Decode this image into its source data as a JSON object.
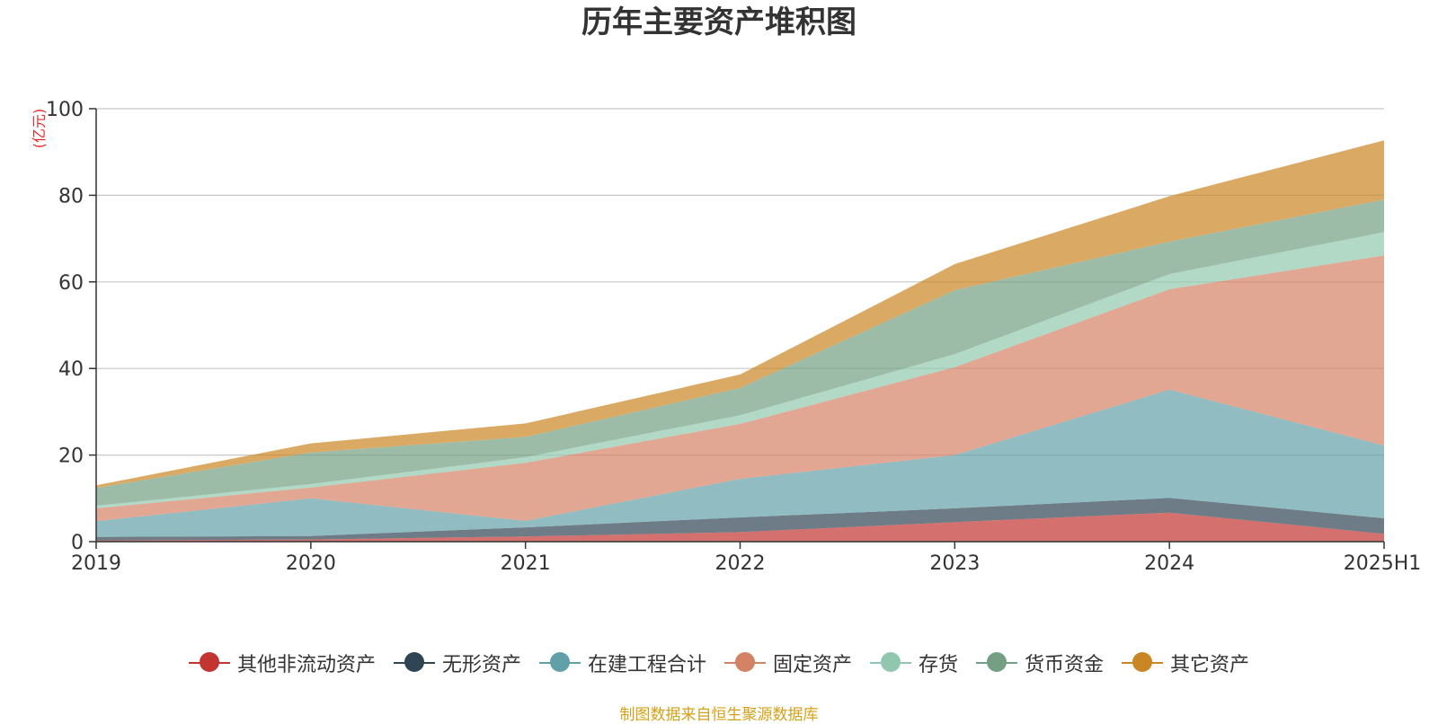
{
  "chart_data": {
    "type": "area",
    "stacked": true,
    "title": "历年主要资产堆积图",
    "ylabel": "(亿元)",
    "xlabel": "",
    "ylim": [
      0,
      100
    ],
    "yticks": [
      0,
      20,
      40,
      60,
      80,
      100
    ],
    "grid": true,
    "legend_position": "bottom",
    "categories": [
      "2019",
      "2020",
      "2021",
      "2022",
      "2023",
      "2024",
      "2025H1"
    ],
    "series": [
      {
        "name": "其他非流动资产",
        "color": "#c23531",
        "values": [
          0.3,
          0.5,
          1.2,
          2.2,
          4.5,
          6.7,
          1.8
        ]
      },
      {
        "name": "无形资产",
        "color": "#2f4554",
        "values": [
          0.8,
          0.8,
          2.1,
          3.4,
          3.2,
          3.4,
          3.6
        ]
      },
      {
        "name": "在建工程合计",
        "color": "#61a0a8",
        "values": [
          3.6,
          8.7,
          1.5,
          8.9,
          12.3,
          25.0,
          16.8
        ]
      },
      {
        "name": "固定资产",
        "color": "#d48265",
        "values": [
          3.0,
          2.5,
          13.4,
          12.7,
          20.3,
          23.2,
          43.9
        ]
      },
      {
        "name": "存货",
        "color": "#91c7ae",
        "values": [
          0.6,
          0.8,
          1.3,
          2.0,
          3.0,
          3.5,
          5.4
        ]
      },
      {
        "name": "货币资金",
        "color": "#749f83",
        "values": [
          4.1,
          7.3,
          4.7,
          6.3,
          14.8,
          7.5,
          7.5
        ]
      },
      {
        "name": "其它资产",
        "color": "#ca8622",
        "values": [
          0.6,
          2.1,
          3.1,
          3.1,
          6.0,
          10.5,
          13.7
        ]
      }
    ]
  },
  "source_note": "制图数据来自恒生聚源数据库"
}
